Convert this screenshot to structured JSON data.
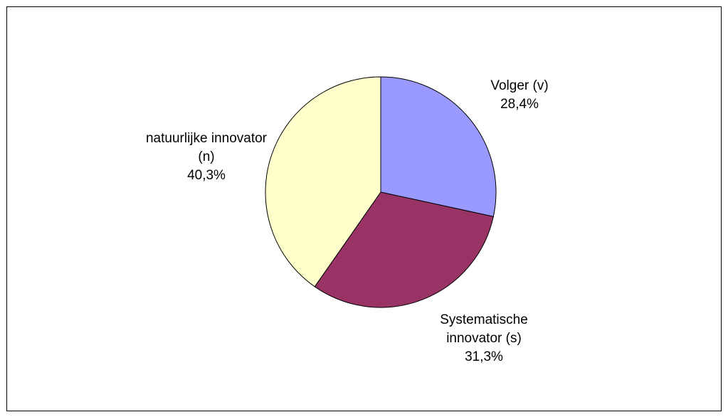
{
  "chart_data": {
    "type": "pie",
    "categories": [
      "Volger (v)",
      "Systematische innovator (s)",
      "natuurlijke innovator (n)"
    ],
    "values": [
      28.4,
      31.3,
      40.3
    ],
    "value_labels": [
      "28,4%",
      "31,3%",
      "40,3%"
    ],
    "colors": [
      "#9999ff",
      "#993366",
      "#ffffcc"
    ]
  }
}
